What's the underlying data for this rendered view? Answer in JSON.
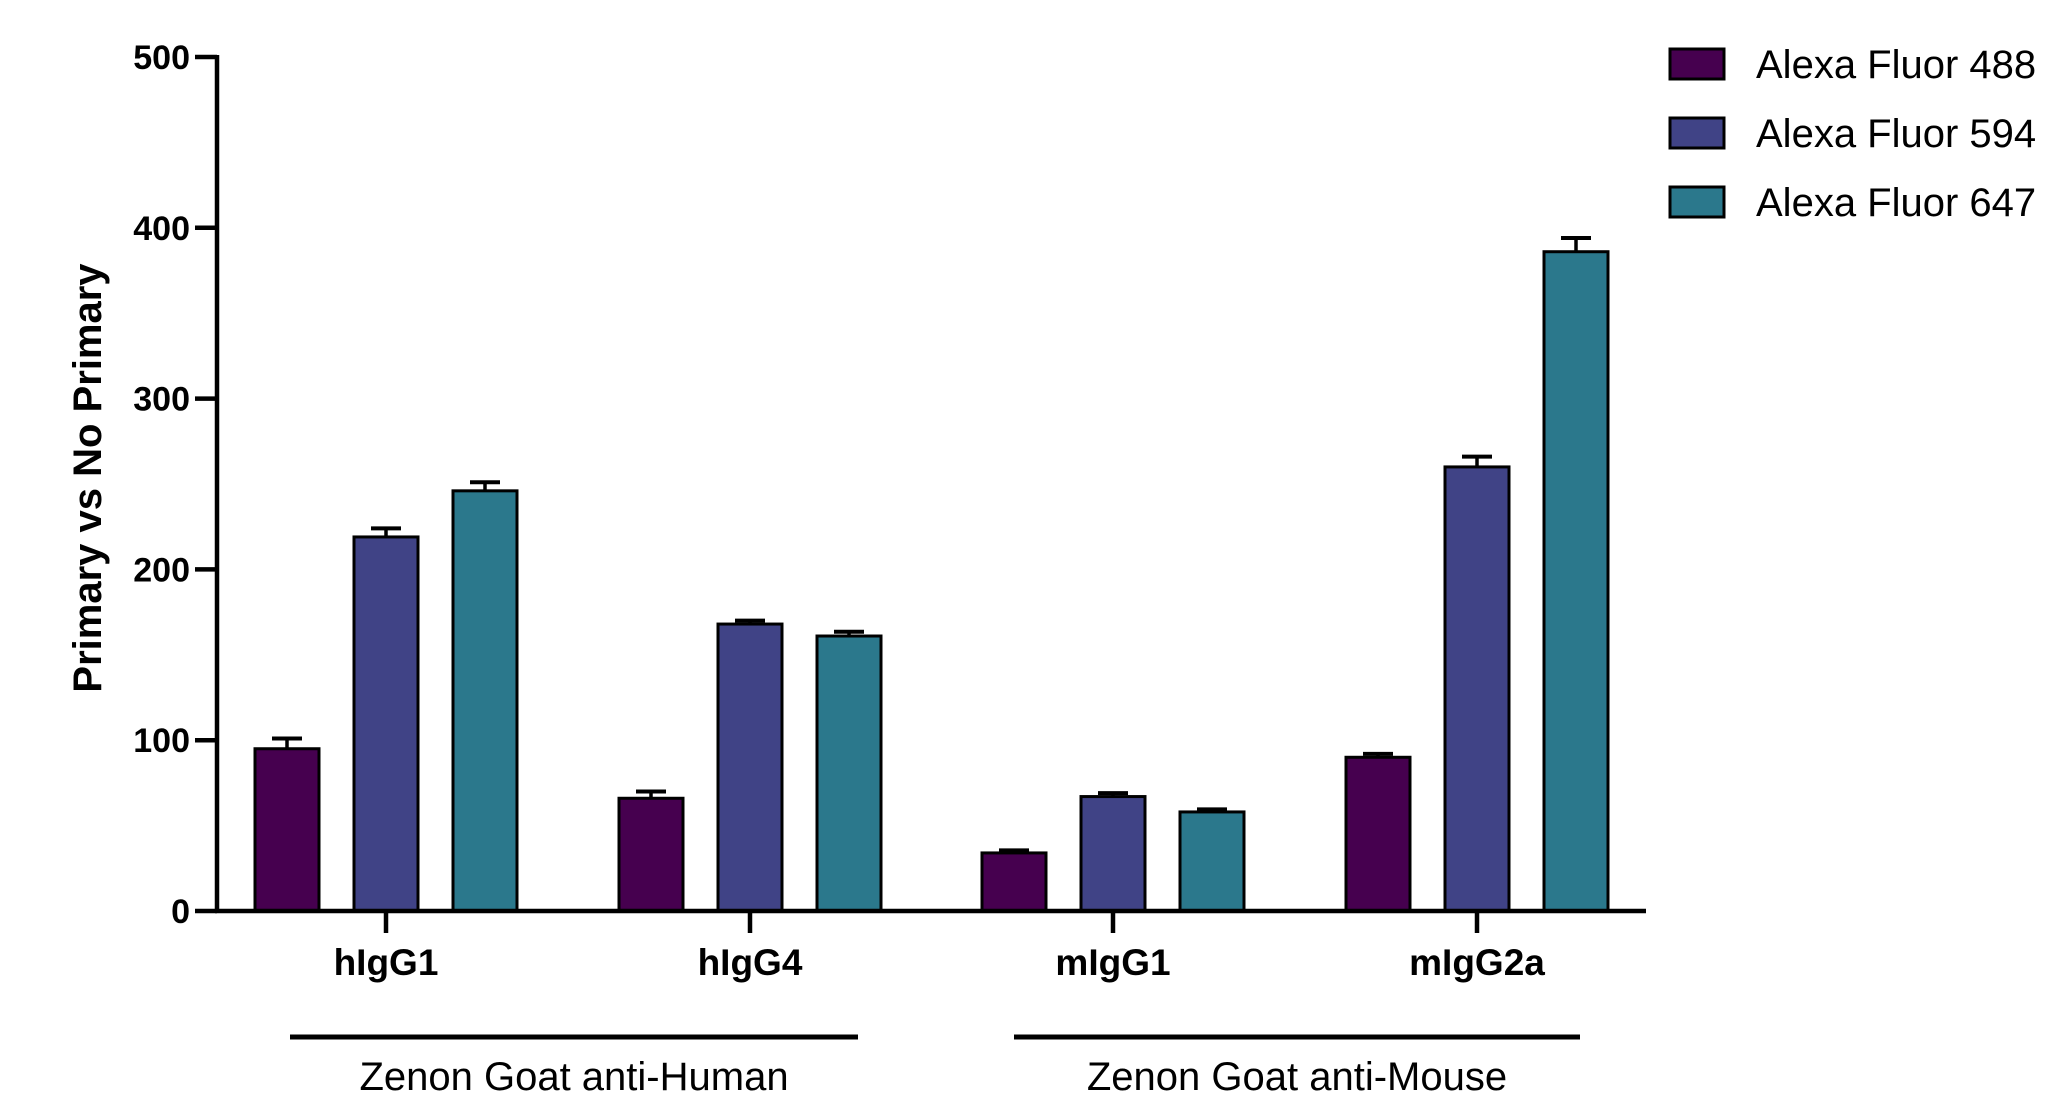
{
  "chart_data": {
    "type": "bar",
    "ylabel": "Primary vs No Primary",
    "ylim": [
      0,
      500
    ],
    "yticks": [
      0,
      100,
      200,
      300,
      400,
      500
    ],
    "categories": [
      "hIgG1",
      "hIgG4",
      "mIgG1",
      "mIgG2a"
    ],
    "groups": [
      {
        "label": "Zenon Goat anti-Human",
        "categories": [
          "hIgG1",
          "hIgG4"
        ]
      },
      {
        "label": "Zenon Goat anti-Mouse",
        "categories": [
          "mIgG1",
          "mIgG2a"
        ]
      }
    ],
    "series": [
      {
        "name": "Alexa Fluor 488",
        "color": "#46004f",
        "values": [
          95,
          66,
          34,
          90
        ],
        "errors": [
          6,
          4,
          1.5,
          2
        ]
      },
      {
        "name": "Alexa Fluor 594",
        "color": "#404386",
        "values": [
          219,
          168,
          67,
          260
        ],
        "errors": [
          5,
          2,
          2,
          6
        ]
      },
      {
        "name": "Alexa Fluor 647",
        "color": "#2b788c",
        "values": [
          246,
          161,
          58,
          386
        ],
        "errors": [
          5,
          2.5,
          1.5,
          8
        ]
      }
    ],
    "legend_position": "top-right",
    "grid": false
  }
}
